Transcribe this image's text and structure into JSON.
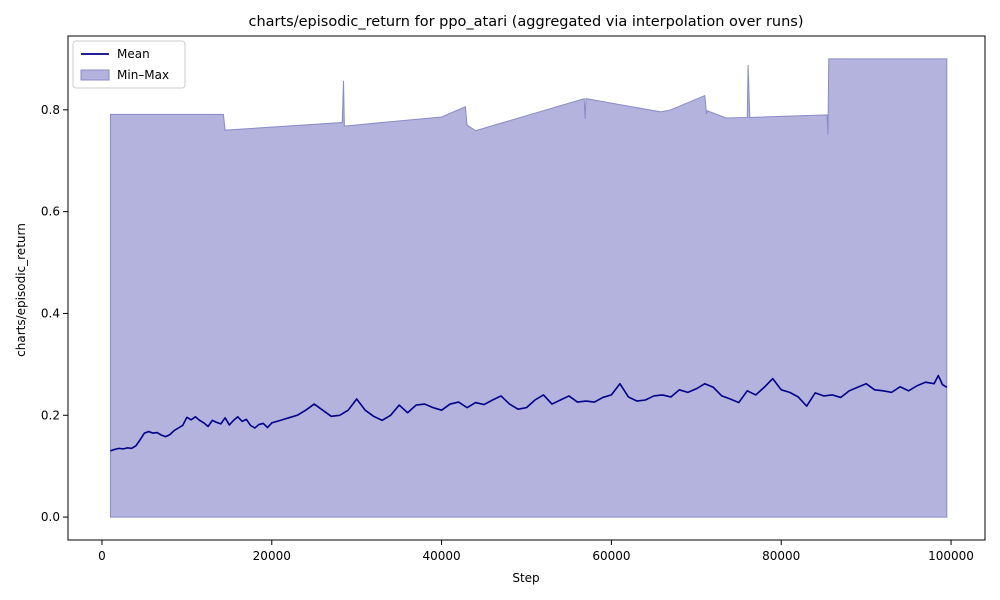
{
  "chart_data": {
    "type": "area",
    "title": "charts/episodic_return for ppo_atari (aggregated via interpolation over runs)",
    "xlabel": "Step",
    "ylabel": "charts/episodic_return",
    "xlim": [
      -4000,
      104000
    ],
    "ylim": [
      -0.045,
      0.945
    ],
    "xticks": [
      0,
      20000,
      40000,
      60000,
      80000,
      100000
    ],
    "xtick_labels": [
      "0",
      "20000",
      "40000",
      "60000",
      "80000",
      "100000"
    ],
    "yticks": [
      0.0,
      0.2,
      0.4,
      0.6,
      0.8
    ],
    "ytick_labels": [
      "0.0",
      "0.2",
      "0.4",
      "0.6",
      "0.8"
    ],
    "grid": false,
    "legend": {
      "position": "top-left",
      "entries": [
        {
          "label": "Mean",
          "kind": "line"
        },
        {
          "label": "Min–Max",
          "kind": "patch"
        }
      ]
    },
    "colors": {
      "mean": "#00008b",
      "band_fill": "#b3b3dd",
      "band_edge": "#8a8ac8"
    },
    "series": [
      {
        "name": "Mean",
        "kind": "line",
        "points": [
          [
            1000,
            0.13
          ],
          [
            1500,
            0.133
          ],
          [
            2000,
            0.135
          ],
          [
            2500,
            0.134
          ],
          [
            3000,
            0.136
          ],
          [
            3500,
            0.135
          ],
          [
            4000,
            0.14
          ],
          [
            4500,
            0.152
          ],
          [
            5000,
            0.165
          ],
          [
            5500,
            0.168
          ],
          [
            6000,
            0.165
          ],
          [
            6500,
            0.166
          ],
          [
            7000,
            0.161
          ],
          [
            7500,
            0.158
          ],
          [
            8000,
            0.162
          ],
          [
            8500,
            0.17
          ],
          [
            9000,
            0.175
          ],
          [
            9500,
            0.18
          ],
          [
            10000,
            0.196
          ],
          [
            10500,
            0.191
          ],
          [
            11000,
            0.197
          ],
          [
            11500,
            0.19
          ],
          [
            12000,
            0.185
          ],
          [
            12500,
            0.178
          ],
          [
            13000,
            0.19
          ],
          [
            13500,
            0.186
          ],
          [
            14000,
            0.183
          ],
          [
            14500,
            0.195
          ],
          [
            15000,
            0.181
          ],
          [
            15500,
            0.19
          ],
          [
            16000,
            0.197
          ],
          [
            16500,
            0.188
          ],
          [
            17000,
            0.192
          ],
          [
            17500,
            0.18
          ],
          [
            18000,
            0.175
          ],
          [
            18500,
            0.182
          ],
          [
            19000,
            0.184
          ],
          [
            19500,
            0.176
          ],
          [
            20000,
            0.185
          ],
          [
            21000,
            0.19
          ],
          [
            22000,
            0.195
          ],
          [
            23000,
            0.2
          ],
          [
            24000,
            0.21
          ],
          [
            25000,
            0.222
          ],
          [
            26000,
            0.21
          ],
          [
            27000,
            0.198
          ],
          [
            28000,
            0.2
          ],
          [
            29000,
            0.21
          ],
          [
            30000,
            0.232
          ],
          [
            31000,
            0.21
          ],
          [
            32000,
            0.198
          ],
          [
            33000,
            0.19
          ],
          [
            34000,
            0.2
          ],
          [
            35000,
            0.22
          ],
          [
            36000,
            0.205
          ],
          [
            37000,
            0.22
          ],
          [
            38000,
            0.222
          ],
          [
            39000,
            0.215
          ],
          [
            40000,
            0.21
          ],
          [
            41000,
            0.222
          ],
          [
            42000,
            0.226
          ],
          [
            43000,
            0.215
          ],
          [
            44000,
            0.225
          ],
          [
            45000,
            0.221
          ],
          [
            46000,
            0.23
          ],
          [
            47000,
            0.238
          ],
          [
            48000,
            0.222
          ],
          [
            49000,
            0.212
          ],
          [
            50000,
            0.215
          ],
          [
            51000,
            0.23
          ],
          [
            52000,
            0.24
          ],
          [
            53000,
            0.222
          ],
          [
            54000,
            0.23
          ],
          [
            55000,
            0.238
          ],
          [
            56000,
            0.226
          ],
          [
            57000,
            0.228
          ],
          [
            58000,
            0.226
          ],
          [
            59000,
            0.235
          ],
          [
            60000,
            0.24
          ],
          [
            61000,
            0.262
          ],
          [
            62000,
            0.236
          ],
          [
            63000,
            0.228
          ],
          [
            64000,
            0.23
          ],
          [
            65000,
            0.238
          ],
          [
            66000,
            0.24
          ],
          [
            67000,
            0.236
          ],
          [
            68000,
            0.25
          ],
          [
            69000,
            0.245
          ],
          [
            70000,
            0.252
          ],
          [
            71000,
            0.262
          ],
          [
            72000,
            0.255
          ],
          [
            73000,
            0.238
          ],
          [
            74000,
            0.232
          ],
          [
            75000,
            0.225
          ],
          [
            76000,
            0.248
          ],
          [
            77000,
            0.24
          ],
          [
            78000,
            0.255
          ],
          [
            79000,
            0.272
          ],
          [
            80000,
            0.25
          ],
          [
            81000,
            0.245
          ],
          [
            82000,
            0.236
          ],
          [
            83000,
            0.218
          ],
          [
            84000,
            0.244
          ],
          [
            85000,
            0.238
          ],
          [
            86000,
            0.24
          ],
          [
            87000,
            0.235
          ],
          [
            88000,
            0.248
          ],
          [
            89000,
            0.255
          ],
          [
            90000,
            0.262
          ],
          [
            91000,
            0.25
          ],
          [
            92000,
            0.248
          ],
          [
            93000,
            0.245
          ],
          [
            94000,
            0.256
          ],
          [
            95000,
            0.248
          ],
          [
            96000,
            0.258
          ],
          [
            97000,
            0.265
          ],
          [
            98000,
            0.262
          ],
          [
            98500,
            0.278
          ],
          [
            99000,
            0.26
          ],
          [
            99500,
            0.255
          ]
        ]
      },
      {
        "name": "Min–Max",
        "kind": "band",
        "upper": [
          [
            1000,
            0.791
          ],
          [
            14300,
            0.791
          ],
          [
            14500,
            0.76
          ],
          [
            28300,
            0.775
          ],
          [
            28450,
            0.857
          ],
          [
            28550,
            0.768
          ],
          [
            40000,
            0.786
          ],
          [
            42800,
            0.806
          ],
          [
            43000,
            0.77
          ],
          [
            44000,
            0.759
          ],
          [
            56800,
            0.822
          ],
          [
            56900,
            0.782
          ],
          [
            57000,
            0.822
          ],
          [
            65800,
            0.796
          ],
          [
            67000,
            0.8
          ],
          [
            71000,
            0.828
          ],
          [
            71200,
            0.792
          ],
          [
            71300,
            0.798
          ],
          [
            73500,
            0.784
          ],
          [
            76000,
            0.785
          ],
          [
            76100,
            0.888
          ],
          [
            76300,
            0.785
          ],
          [
            85400,
            0.79
          ],
          [
            85500,
            0.752
          ],
          [
            85600,
            0.9
          ],
          [
            99500,
            0.9
          ]
        ],
        "lower": [
          [
            1000,
            0.0
          ],
          [
            99500,
            0.0
          ]
        ]
      }
    ]
  }
}
